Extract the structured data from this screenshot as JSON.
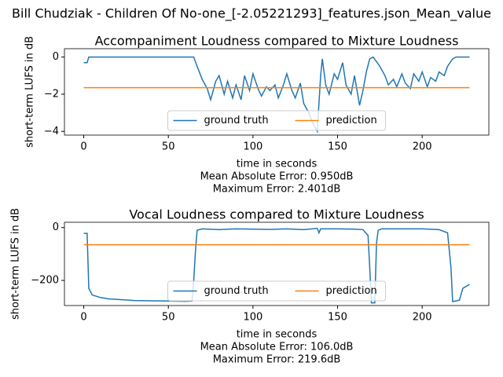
{
  "title": "Bill Chudziak - Children Of No-one_[-2.05221293]_features.json_Mean_value",
  "chart_data": [
    {
      "type": "line",
      "title": "Accompaniment Loudness compared to Mixture Loudness",
      "xlabel": "time in seconds",
      "ylabel": "short-term LUFS in dB",
      "annotations": [
        "Mean Absolute Error: 0.950dB",
        "Maximum Error: 2.401dB"
      ],
      "xlim": [
        -11.4,
        239.4
      ],
      "xticks": [
        0,
        50,
        100,
        150,
        200
      ],
      "ylim": [
        -4.2,
        0.45
      ],
      "yticks": [
        {
          "value": -4,
          "label": "−4"
        },
        {
          "value": -2,
          "label": "−2"
        },
        0
      ],
      "legend": "lower center",
      "series": [
        {
          "name": "ground truth",
          "color": "#1f77b4",
          "x": [
            0,
            2,
            3,
            20,
            40,
            65,
            67,
            70,
            73,
            75,
            78,
            80,
            83,
            85,
            88,
            90,
            93,
            95,
            98,
            100,
            103,
            105,
            108,
            110,
            113,
            115,
            118,
            120,
            123,
            125,
            128,
            130,
            133,
            135,
            138,
            140,
            141,
            143,
            145,
            148,
            150,
            153,
            155,
            158,
            160,
            163,
            165,
            167,
            169,
            171,
            175,
            178,
            180,
            183,
            185,
            188,
            190,
            193,
            195,
            198,
            200,
            203,
            205,
            208,
            210,
            213,
            215,
            218,
            220,
            228
          ],
          "values": [
            -0.3,
            -0.3,
            0,
            0,
            0,
            0,
            -0.5,
            -1.2,
            -1.7,
            -2.3,
            -1.3,
            -1.0,
            -2.0,
            -1.3,
            -2.2,
            -1.5,
            -2.3,
            -1.0,
            -1.8,
            -0.9,
            -1.7,
            -2.1,
            -1.6,
            -1.8,
            -1.5,
            -2.2,
            -1.5,
            -0.9,
            -1.8,
            -2.2,
            -1.4,
            -2.5,
            -3.0,
            -3.5,
            -4.0,
            -1.0,
            -0.1,
            -1.5,
            -2.0,
            -0.9,
            -1.2,
            -0.3,
            -1.5,
            -2.0,
            -1.0,
            -2.6,
            -1.8,
            -0.8,
            -0.1,
            0,
            -0.5,
            -1.0,
            -1.5,
            -1.2,
            -1.6,
            -0.9,
            -1.4,
            -1.7,
            -0.9,
            -1.3,
            -0.8,
            -1.6,
            -1.1,
            -1.3,
            -0.8,
            -1.0,
            -0.5,
            -0.1,
            0,
            0
          ]
        },
        {
          "name": "prediction",
          "color": "#ff7f0e",
          "x": [
            0,
            228
          ],
          "values": [
            -1.65,
            -1.65
          ]
        }
      ]
    },
    {
      "type": "line",
      "title": "Vocal Loudness compared to Mixture Loudness",
      "xlabel": "time in seconds",
      "ylabel": "short-term LUFS in dB",
      "annotations": [
        "Mean Absolute Error: 106.0dB",
        "Maximum Error: 219.6dB"
      ],
      "xlim": [
        -11.4,
        239.4
      ],
      "xticks": [
        0,
        50,
        100,
        150,
        200
      ],
      "ylim": [
        -295,
        20
      ],
      "yticks": [
        {
          "value": -200,
          "label": "−200"
        },
        0
      ],
      "legend": "lower center",
      "series": [
        {
          "name": "ground truth",
          "color": "#1f77b4",
          "x": [
            0,
            2,
            3,
            5,
            10,
            15,
            20,
            30,
            40,
            50,
            60,
            64,
            65,
            66,
            67,
            70,
            80,
            90,
            100,
            110,
            120,
            130,
            138,
            139,
            140,
            150,
            160,
            165,
            168,
            169,
            170,
            172,
            173,
            174,
            176,
            190,
            200,
            210,
            215,
            217,
            218,
            222,
            224,
            228
          ],
          "values": [
            -22,
            -22,
            -230,
            -255,
            -265,
            -270,
            -272,
            -276,
            -277,
            -278,
            -279,
            -278,
            -200,
            -90,
            -10,
            -5,
            -8,
            -5,
            -6,
            -7,
            -5,
            -8,
            -3,
            -20,
            -5,
            -5,
            -6,
            -8,
            -30,
            -150,
            -285,
            -285,
            -60,
            -10,
            -5,
            -5,
            -5,
            -8,
            -20,
            -150,
            -280,
            -275,
            -230,
            -215
          ]
        },
        {
          "name": "prediction",
          "color": "#ff7f0e",
          "x": [
            0,
            228
          ],
          "values": [
            -65,
            -65
          ]
        }
      ]
    }
  ]
}
